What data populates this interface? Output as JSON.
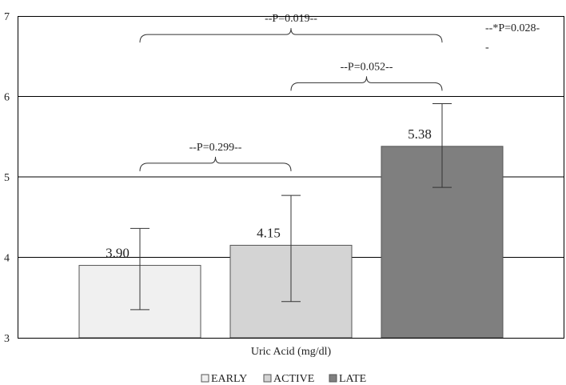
{
  "chart_data": {
    "type": "bar",
    "xlabel": "Uric Acid (mg/dl)",
    "ylim": [
      3,
      7
    ],
    "yticks": [
      "3",
      "4",
      "5",
      "6",
      "7"
    ],
    "grid": true,
    "legend_position": "bottom",
    "series": [
      {
        "name": "EARLY",
        "value": 3.9,
        "label": "3.90",
        "err_low": 3.35,
        "err_high": 4.36,
        "color": "#f0f0f0"
      },
      {
        "name": "ACTIVE",
        "value": 4.15,
        "label": "4.15",
        "err_low": 3.45,
        "err_high": 4.77,
        "color": "#d4d4d4"
      },
      {
        "name": "LATE",
        "value": 5.38,
        "label": "5.38",
        "err_low": 4.87,
        "err_high": 5.91,
        "color": "#7f7f7f"
      }
    ],
    "comparisons": [
      {
        "label": "--P=0.299--",
        "from": 0,
        "to": 1,
        "y": 5.17
      },
      {
        "label": "--P=0.052--",
        "from": 1,
        "to": 2,
        "y": 6.17
      },
      {
        "label": "--P=0.019--",
        "from": 0,
        "to": 2,
        "y": 6.77
      }
    ],
    "annotation": {
      "line1": "--*P=0.028-",
      "line2": "-"
    }
  }
}
